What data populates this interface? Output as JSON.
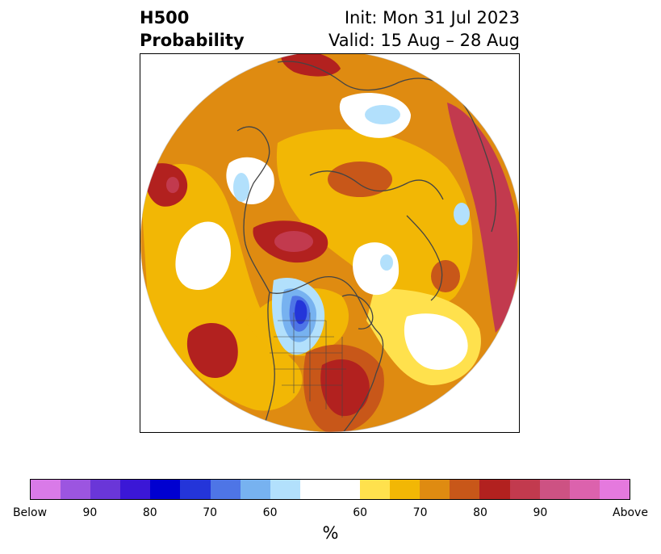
{
  "header": {
    "variable": "H500",
    "product": "Probability",
    "init": "Init: Mon 31 Jul 2023",
    "valid": "Valid: 15 Aug – 28 Aug"
  },
  "colorbar": {
    "unit_label": "%",
    "tick_labels": [
      "Below",
      "90",
      "80",
      "70",
      "60",
      "60",
      "70",
      "80",
      "90",
      "Above"
    ],
    "colors": [
      "#d97ae8",
      "#9c55e0",
      "#6a36d8",
      "#3b17d6",
      "#0000d0",
      "#2435d9",
      "#4e75e6",
      "#77b2f0",
      "#b2e0fc",
      "#ffffff",
      "#ffe14d",
      "#f2b705",
      "#df8b11",
      "#c85719",
      "#b2211f",
      "#c23a4e",
      "#cd5283",
      "#dc62ad",
      "#e579de"
    ]
  },
  "map": {
    "projection": "north-polar-stereographic",
    "land_outline_color": "#444444",
    "regions": [
      {
        "label": "above-normal",
        "level": 5,
        "color": "#b2211f",
        "where": "eastern United States"
      },
      {
        "label": "above-normal",
        "level": 5,
        "color": "#c23a4e",
        "where": "western Eurasia / Europe"
      },
      {
        "label": "above-normal",
        "level": 5,
        "color": "#b2211f",
        "where": "north-eastern Siberia"
      },
      {
        "label": "above-normal",
        "level": 5,
        "color": "#b2211f",
        "where": "north-eastern Pacific"
      },
      {
        "label": "above-normal",
        "level": 5,
        "color": "#b2211f",
        "where": "northern Asia rim"
      },
      {
        "label": "below-normal",
        "level": 5,
        "color": "#2435d9",
        "where": "central Canada / northern Plains"
      },
      {
        "label": "below-normal",
        "level": 1,
        "color": "#b2e0fc",
        "where": "Arctic islands / Greenland / Scandinavia"
      }
    ]
  }
}
